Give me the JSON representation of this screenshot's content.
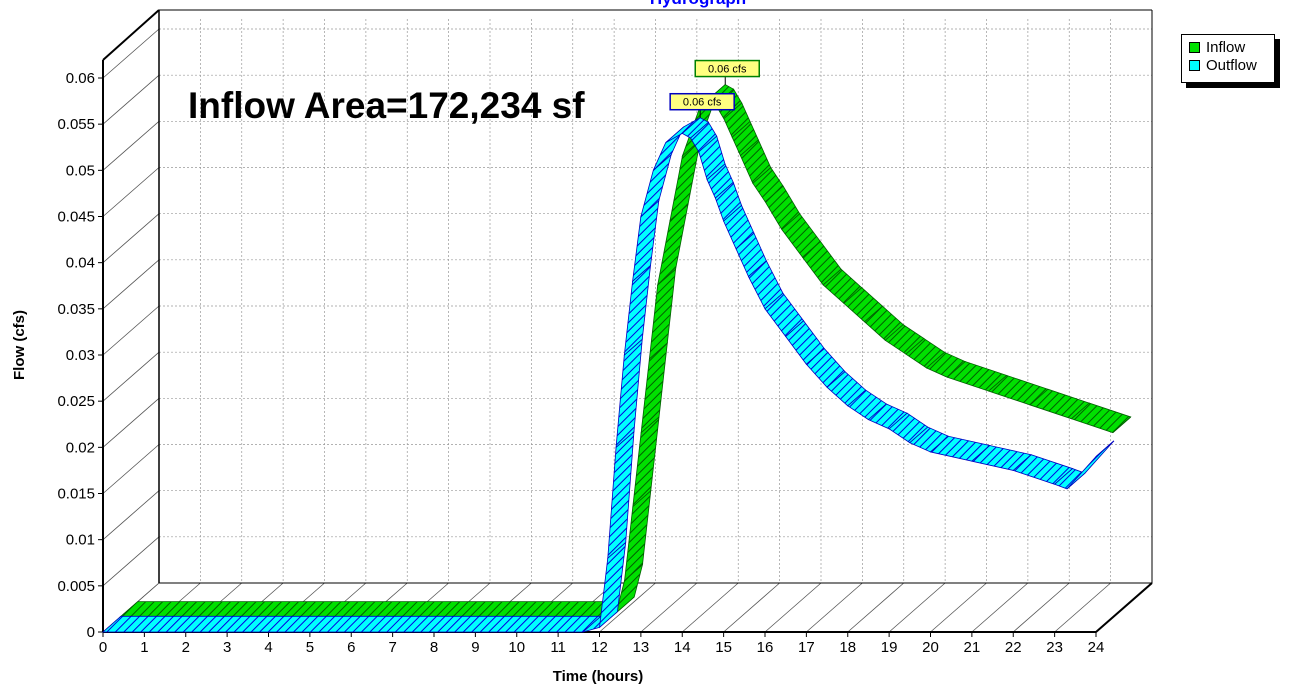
{
  "chart_data": {
    "type": "area",
    "title": "Hydrograph",
    "annotation": "Inflow Area=172,234 sf",
    "xlabel": "Time  (hours)",
    "ylabel": "Flow  (cfs)",
    "xlim": [
      0,
      24
    ],
    "ylim": [
      0,
      0.06
    ],
    "x_ticks": [
      "0",
      "1",
      "2",
      "3",
      "4",
      "5",
      "6",
      "7",
      "8",
      "9",
      "10",
      "11",
      "12",
      "13",
      "14",
      "15",
      "16",
      "17",
      "18",
      "19",
      "20",
      "21",
      "22",
      "23",
      "24"
    ],
    "y_ticks": [
      "0",
      "0.005",
      "0.01",
      "0.015",
      "0.02",
      "0.025",
      "0.03",
      "0.035",
      "0.04",
      "0.045",
      "0.05",
      "0.055",
      "0.06"
    ],
    "grid": true,
    "legend_position": "top-right",
    "series": [
      {
        "name": "Inflow",
        "color": "#00e000",
        "peak_label": "0.06 cfs",
        "x": [
          0,
          11.6,
          12.0,
          12.2,
          12.4,
          12.6,
          12.8,
          13.0,
          13.3,
          13.6,
          14.0,
          14.2,
          14.4,
          14.6,
          14.8,
          15.0,
          15.3,
          15.6,
          16.0,
          16.5,
          17.0,
          17.5,
          18.0,
          18.5,
          19.0,
          19.5,
          20.0,
          21.0,
          22.0,
          23.0,
          24.0
        ],
        "values": [
          0,
          0,
          0.0005,
          0.004,
          0.012,
          0.02,
          0.028,
          0.036,
          0.043,
          0.05,
          0.055,
          0.056,
          0.0555,
          0.054,
          0.052,
          0.05,
          0.047,
          0.045,
          0.042,
          0.039,
          0.036,
          0.034,
          0.032,
          0.03,
          0.0285,
          0.027,
          0.026,
          0.0245,
          0.023,
          0.0215,
          0.02
        ]
      },
      {
        "name": "Outflow",
        "color": "#00ffff",
        "peak_label": "0.06 cfs",
        "x": [
          0,
          11.6,
          12.0,
          12.2,
          12.4,
          12.6,
          12.8,
          13.0,
          13.3,
          13.6,
          14.0,
          14.2,
          14.4,
          14.6,
          14.8,
          15.0,
          15.3,
          15.6,
          16.0,
          16.5,
          17.0,
          17.5,
          18.0,
          18.5,
          19.0,
          19.5,
          20.0,
          21.0,
          22.0,
          23.0,
          23.3,
          24.0
        ],
        "values": [
          0,
          0,
          0.0005,
          0.008,
          0.02,
          0.03,
          0.038,
          0.045,
          0.05,
          0.053,
          0.054,
          0.0535,
          0.052,
          0.049,
          0.047,
          0.0445,
          0.0415,
          0.0385,
          0.035,
          0.032,
          0.029,
          0.0265,
          0.0245,
          0.023,
          0.022,
          0.0205,
          0.0195,
          0.0185,
          0.0175,
          0.016,
          0.0155,
          0.019
        ]
      }
    ]
  }
}
